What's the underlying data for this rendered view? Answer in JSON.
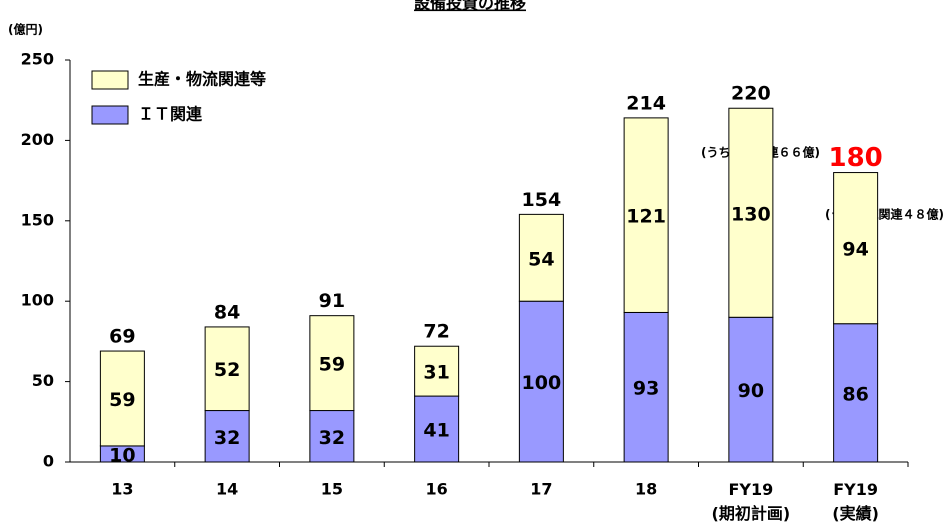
{
  "chart_data": {
    "type": "bar",
    "stacked": true,
    "title": "設備投資の推移",
    "y_axis_label": "(億円)",
    "categories": [
      "13",
      "14",
      "15",
      "16",
      "17",
      "18",
      "FY19\n(期初計画)",
      "FY19\n(実績)"
    ],
    "series": [
      {
        "name": "ＩＴ関連",
        "color": "#9999ff",
        "values": [
          10,
          32,
          32,
          41,
          100,
          93,
          90,
          86
        ]
      },
      {
        "name": "生産・物流関連等",
        "color": "#ffffcc",
        "values": [
          59,
          52,
          59,
          31,
          54,
          121,
          130,
          94
        ]
      }
    ],
    "totals": [
      69,
      84,
      91,
      72,
      154,
      214,
      220,
      180
    ],
    "totals_color": "#000000",
    "highlight": {
      "index": 7,
      "color": "#ff0000"
    },
    "annotations": [
      "(うち物流関連６６億)",
      "(うち物流関連４８億)"
    ],
    "ylim": [
      0,
      250
    ],
    "yticks": [
      0,
      50,
      100,
      150,
      200,
      250
    ],
    "grid": false,
    "legend": "upper left"
  }
}
